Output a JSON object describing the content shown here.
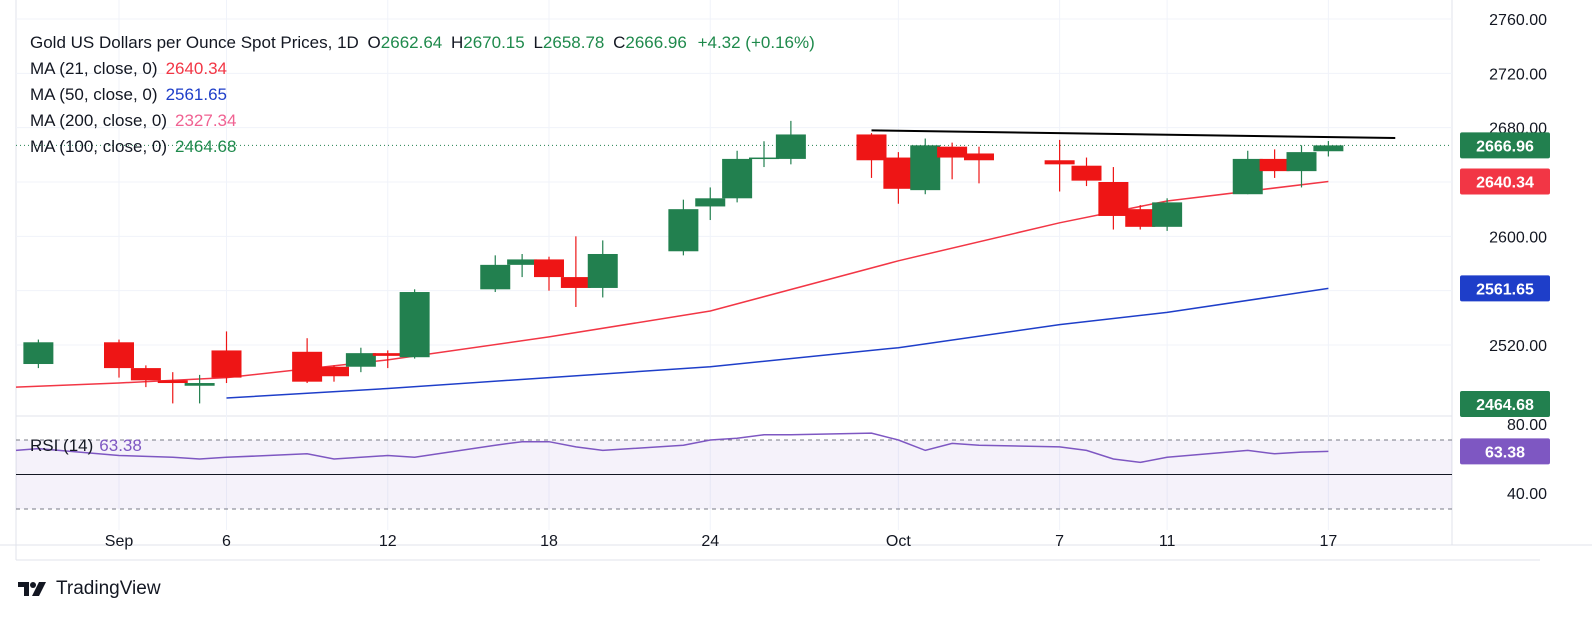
{
  "legend": {
    "title": "Gold US Dollars per Ounce Spot Prices, 1D",
    "open_key": "O",
    "open": "2662.64",
    "high_key": "H",
    "high": "2670.15",
    "low_key": "L",
    "low": "2658.78",
    "close_key": "C",
    "close": "2666.96",
    "change": "+4.32 (+0.16%)",
    "ma": [
      {
        "label": "MA (21, close, 0)",
        "value": "2640.34",
        "color": "#f23645"
      },
      {
        "label": "MA (50, close, 0)",
        "value": "2561.65",
        "color": "#1e3ec9"
      },
      {
        "label": "MA (200, close, 0)",
        "value": "2327.34",
        "color": "#f06292"
      },
      {
        "label": "MA (100, close, 0)",
        "value": "2464.68",
        "color": "#1f8a4c"
      }
    ]
  },
  "rsi": {
    "label": "RSI (14)",
    "value": "63.38",
    "color": "#7e57c2"
  },
  "brand": {
    "name": "TradingView"
  },
  "colors": {
    "up": "#22804f",
    "down": "#ee1515",
    "ma21": "#f23645",
    "ma50": "#1e3ec9",
    "trendline": "#000000",
    "rsi": "#7e57c2"
  },
  "chart_data": {
    "type": "candlestick",
    "price_axis": {
      "min": 2480,
      "max": 2760,
      "ticks": [
        "2760.00",
        "2720.00",
        "2680.00",
        "2640.00",
        "2600.00",
        "2560.00",
        "2520.00"
      ]
    },
    "x_ticks": [
      {
        "label": "Sep",
        "day": "2024-09-02"
      },
      {
        "label": "6",
        "day": "2024-09-06"
      },
      {
        "label": "12",
        "day": "2024-09-12"
      },
      {
        "label": "18",
        "day": "2024-09-18"
      },
      {
        "label": "24",
        "day": "2024-09-24"
      },
      {
        "label": "Oct",
        "day": "2024-10-01"
      },
      {
        "label": "7",
        "day": "2024-10-07"
      },
      {
        "label": "11",
        "day": "2024-10-11"
      },
      {
        "label": "17",
        "day": "2024-10-17"
      }
    ],
    "candles": [
      {
        "date": "2024-08-30",
        "o": 2506,
        "h": 2524,
        "c": 2522,
        "l": 2503
      },
      {
        "date": "2024-09-02",
        "o": 2522,
        "h": 2524,
        "c": 2503,
        "l": 2496
      },
      {
        "date": "2024-09-03",
        "o": 2503,
        "h": 2505,
        "c": 2494,
        "l": 2489
      },
      {
        "date": "2024-09-04",
        "o": 2494,
        "h": 2500,
        "c": 2492,
        "l": 2477
      },
      {
        "date": "2024-09-05",
        "o": 2490,
        "h": 2498,
        "c": 2492,
        "l": 2477
      },
      {
        "date": "2024-09-06",
        "o": 2516,
        "h": 2530,
        "c": 2496,
        "l": 2492
      },
      {
        "date": "2024-09-09",
        "o": 2515,
        "h": 2525,
        "c": 2493,
        "l": 2492
      },
      {
        "date": "2024-09-10",
        "o": 2504,
        "h": 2505,
        "c": 2497,
        "l": 2493
      },
      {
        "date": "2024-09-11",
        "o": 2504,
        "h": 2518,
        "c": 2514,
        "l": 2500
      },
      {
        "date": "2024-09-12",
        "o": 2514,
        "h": 2516,
        "c": 2512,
        "l": 2503
      },
      {
        "date": "2024-09-13",
        "o": 2511,
        "h": 2561,
        "c": 2559,
        "l": 2510
      },
      {
        "date": "2024-09-16",
        "o": 2561,
        "h": 2586,
        "c": 2579,
        "l": 2559
      },
      {
        "date": "2024-09-17",
        "o": 2579,
        "h": 2587,
        "c": 2583,
        "l": 2570
      },
      {
        "date": "2024-09-18",
        "o": 2583,
        "h": 2585,
        "c": 2570,
        "l": 2560
      },
      {
        "date": "2024-09-19",
        "o": 2570,
        "h": 2600,
        "c": 2562,
        "l": 2548
      },
      {
        "date": "2024-09-20",
        "o": 2562,
        "h": 2597,
        "c": 2587,
        "l": 2555
      },
      {
        "date": "2024-09-23",
        "o": 2589,
        "h": 2627,
        "c": 2620,
        "l": 2586
      },
      {
        "date": "2024-09-24",
        "o": 2622,
        "h": 2636,
        "c": 2628,
        "l": 2612
      },
      {
        "date": "2024-09-25",
        "o": 2628,
        "h": 2663,
        "c": 2657,
        "l": 2625
      },
      {
        "date": "2024-09-26",
        "o": 2657,
        "h": 2670,
        "c": 2658,
        "l": 2651
      },
      {
        "date": "2024-09-27",
        "o": 2657,
        "h": 2685,
        "c": 2675,
        "l": 2653
      },
      {
        "date": "2024-09-30",
        "o": 2675,
        "h": 2676,
        "c": 2656,
        "l": 2643
      },
      {
        "date": "2024-10-01",
        "o": 2658,
        "h": 2662,
        "c": 2635,
        "l": 2624
      },
      {
        "date": "2024-10-02",
        "o": 2634,
        "h": 2672,
        "c": 2667,
        "l": 2631
      },
      {
        "date": "2024-10-03",
        "o": 2666,
        "h": 2669,
        "c": 2658,
        "l": 2642
      },
      {
        "date": "2024-10-04",
        "o": 2661,
        "h": 2666,
        "c": 2656,
        "l": 2639
      },
      {
        "date": "2024-10-07",
        "o": 2656,
        "h": 2671,
        "c": 2653,
        "l": 2633
      },
      {
        "date": "2024-10-08",
        "o": 2652,
        "h": 2658,
        "c": 2641,
        "l": 2637
      },
      {
        "date": "2024-10-09",
        "o": 2640,
        "h": 2651,
        "c": 2615,
        "l": 2605
      },
      {
        "date": "2024-10-10",
        "o": 2620,
        "h": 2623,
        "c": 2607,
        "l": 2605
      },
      {
        "date": "2024-10-11",
        "o": 2607,
        "h": 2628,
        "c": 2625,
        "l": 2604
      },
      {
        "date": "2024-10-14",
        "o": 2631,
        "h": 2663,
        "c": 2657,
        "l": 2631
      },
      {
        "date": "2024-10-15",
        "o": 2657,
        "h": 2664,
        "c": 2648,
        "l": 2643
      },
      {
        "date": "2024-10-16",
        "o": 2648,
        "h": 2667,
        "c": 2662,
        "l": 2636
      },
      {
        "date": "2024-10-17",
        "o": 2662.64,
        "h": 2670.15,
        "c": 2666.96,
        "l": 2658.78
      }
    ],
    "ma21": [
      {
        "date": "2024-08-23",
        "v": 2484
      },
      {
        "date": "2024-09-02",
        "v": 2492
      },
      {
        "date": "2024-09-06",
        "v": 2496
      },
      {
        "date": "2024-09-12",
        "v": 2509
      },
      {
        "date": "2024-09-18",
        "v": 2526
      },
      {
        "date": "2024-09-24",
        "v": 2545
      },
      {
        "date": "2024-10-01",
        "v": 2582
      },
      {
        "date": "2024-10-07",
        "v": 2610
      },
      {
        "date": "2024-10-11",
        "v": 2626
      },
      {
        "date": "2024-10-17",
        "v": 2640.34
      }
    ],
    "ma50": [
      {
        "date": "2024-09-06",
        "v": 2481
      },
      {
        "date": "2024-09-12",
        "v": 2488
      },
      {
        "date": "2024-09-18",
        "v": 2496
      },
      {
        "date": "2024-09-24",
        "v": 2504
      },
      {
        "date": "2024-10-01",
        "v": 2518
      },
      {
        "date": "2024-10-07",
        "v": 2535
      },
      {
        "date": "2024-10-11",
        "v": 2544
      },
      {
        "date": "2024-10-17",
        "v": 2561.65
      }
    ],
    "trendline": {
      "from": {
        "date": "2024-09-30",
        "v": 2678
      },
      "to": {
        "date": "2024-10-18",
        "v": 2672
      }
    },
    "rsi": {
      "axis": {
        "min": 30,
        "max": 90,
        "ticks": [
          "80.00",
          "40.00"
        ],
        "upper": 70,
        "lower": 30
      },
      "values": [
        {
          "date": "2024-08-29",
          "v": 64
        },
        {
          "date": "2024-08-30",
          "v": 65
        },
        {
          "date": "2024-09-02",
          "v": 61
        },
        {
          "date": "2024-09-04",
          "v": 60
        },
        {
          "date": "2024-09-05",
          "v": 59
        },
        {
          "date": "2024-09-06",
          "v": 60
        },
        {
          "date": "2024-09-09",
          "v": 62
        },
        {
          "date": "2024-09-10",
          "v": 59
        },
        {
          "date": "2024-09-11",
          "v": 60
        },
        {
          "date": "2024-09-12",
          "v": 61
        },
        {
          "date": "2024-09-13",
          "v": 60
        },
        {
          "date": "2024-09-16",
          "v": 67
        },
        {
          "date": "2024-09-17",
          "v": 69
        },
        {
          "date": "2024-09-18",
          "v": 69
        },
        {
          "date": "2024-09-19",
          "v": 66
        },
        {
          "date": "2024-09-20",
          "v": 64
        },
        {
          "date": "2024-09-23",
          "v": 67
        },
        {
          "date": "2024-09-24",
          "v": 70
        },
        {
          "date": "2024-09-25",
          "v": 71
        },
        {
          "date": "2024-09-26",
          "v": 73
        },
        {
          "date": "2024-09-27",
          "v": 73
        },
        {
          "date": "2024-09-30",
          "v": 74
        },
        {
          "date": "2024-10-01",
          "v": 70
        },
        {
          "date": "2024-10-02",
          "v": 64
        },
        {
          "date": "2024-10-03",
          "v": 68
        },
        {
          "date": "2024-10-04",
          "v": 67
        },
        {
          "date": "2024-10-07",
          "v": 66
        },
        {
          "date": "2024-10-08",
          "v": 64
        },
        {
          "date": "2024-10-09",
          "v": 59
        },
        {
          "date": "2024-10-10",
          "v": 57
        },
        {
          "date": "2024-10-11",
          "v": 60
        },
        {
          "date": "2024-10-14",
          "v": 64
        },
        {
          "date": "2024-10-15",
          "v": 62
        },
        {
          "date": "2024-10-16",
          "v": 63
        },
        {
          "date": "2024-10-17",
          "v": 63.38
        }
      ]
    },
    "price_labels": [
      {
        "value": "2666.96",
        "v": 2666.96,
        "color": "#22804f"
      },
      {
        "value": "2640.34",
        "v": 2640.34,
        "color": "#f23645"
      },
      {
        "value": "2561.65",
        "v": 2561.65,
        "color": "#1e3ec9"
      },
      {
        "value": "2464.68",
        "v": 2464.68,
        "color": "#22804f",
        "pin": "bottom"
      }
    ]
  }
}
